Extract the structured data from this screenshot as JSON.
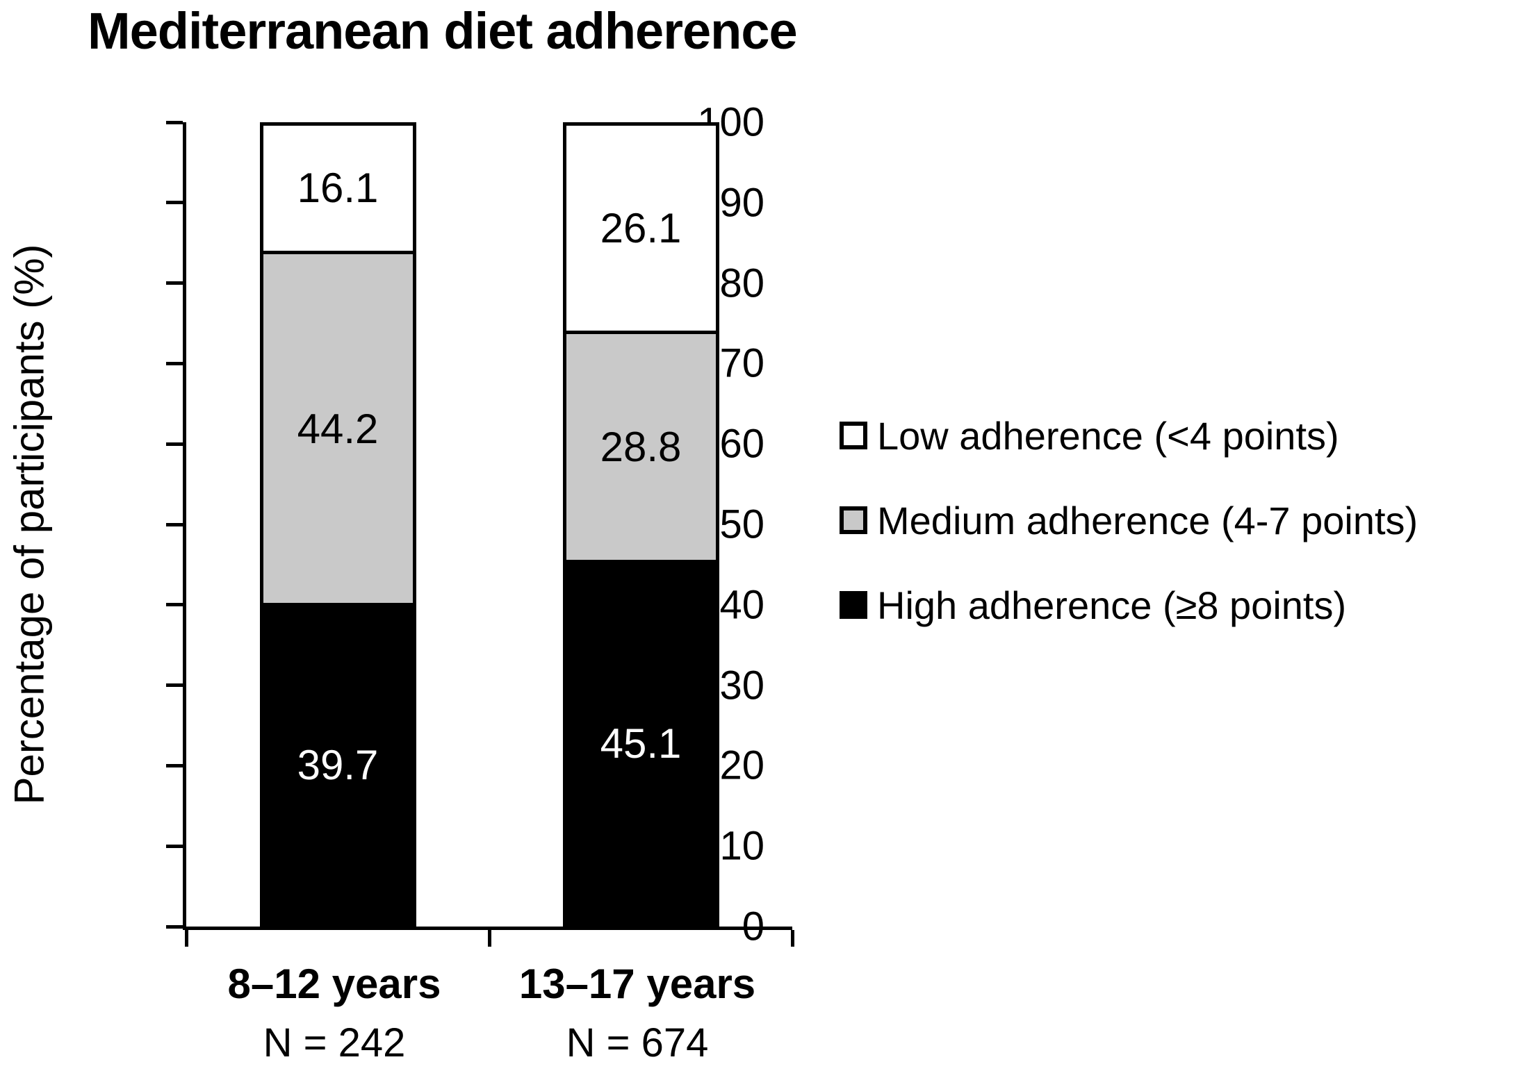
{
  "chart_data": {
    "type": "bar",
    "stacked": true,
    "title": "Mediterranean diet adherence",
    "ylabel": "Percentage of participants (%)",
    "ylim": [
      0,
      100
    ],
    "yticks": [
      0,
      10,
      20,
      30,
      40,
      50,
      60,
      70,
      80,
      90,
      100
    ],
    "grid": false,
    "legend_position": "right",
    "categories": [
      "8–12 years",
      "13–17 years"
    ],
    "n_labels": [
      "N = 242",
      "N = 674"
    ],
    "series": [
      {
        "name": "Low adherence (<4 points)",
        "color": "#ffffff",
        "label_color": "#000000",
        "values": [
          16.1,
          26.1
        ]
      },
      {
        "name": "Medium adherence (4-7 points)",
        "color": "#c9c9c9",
        "label_color": "#000000",
        "values": [
          44.2,
          28.8
        ]
      },
      {
        "name": "High adherence (≥8 points)",
        "color": "#000000",
        "label_color": "#ffffff",
        "values": [
          39.7,
          45.1
        ]
      }
    ]
  }
}
